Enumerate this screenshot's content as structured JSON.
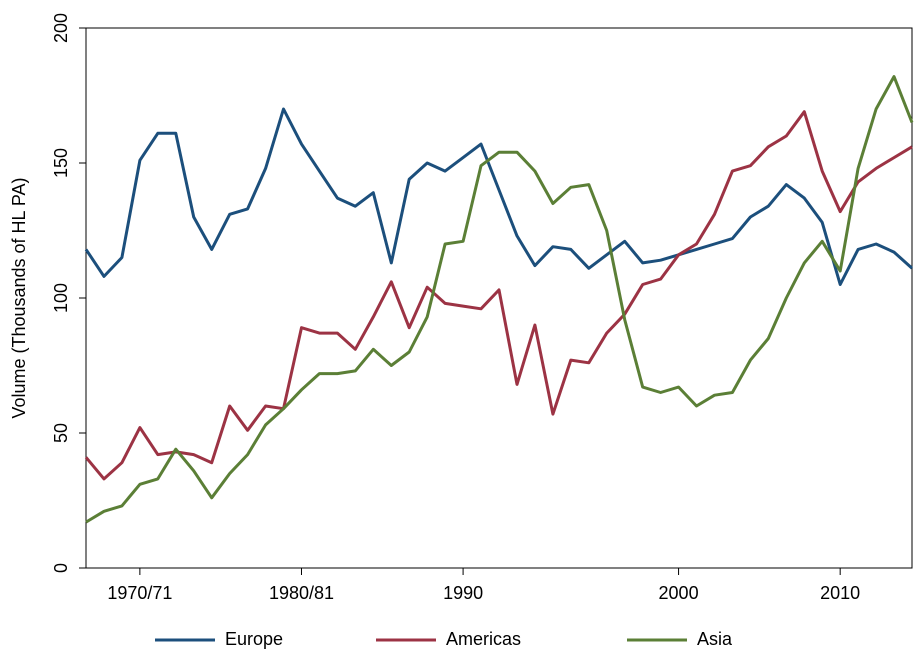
{
  "chart_data": {
    "type": "line",
    "ylabel": "Volume (Thousands of HL PA)",
    "categories": [
      null,
      null,
      null,
      "1970/71",
      null,
      null,
      null,
      null,
      null,
      null,
      null,
      null,
      "1980/81",
      null,
      null,
      null,
      null,
      null,
      null,
      null,
      null,
      "1990",
      null,
      null,
      null,
      null,
      null,
      null,
      null,
      null,
      null,
      null,
      null,
      "2000",
      null,
      null,
      null,
      null,
      null,
      null,
      null,
      null,
      "2010",
      null,
      null,
      null,
      null
    ],
    "ylim": [
      0,
      200
    ],
    "yticks": [
      0,
      50,
      100,
      150,
      200
    ],
    "grid": false,
    "legend": "bottom",
    "series": [
      {
        "name": "Europe",
        "color": "#1c4f7c",
        "values": [
          118,
          108,
          115,
          151,
          161,
          161,
          130,
          118,
          131,
          133,
          148,
          170,
          157,
          147,
          137,
          134,
          139,
          113,
          144,
          150,
          147,
          152,
          157,
          140,
          123,
          112,
          119,
          118,
          111,
          116,
          121,
          113,
          114,
          116,
          118,
          120,
          122,
          130,
          134,
          142,
          137,
          128,
          105,
          118,
          120,
          117,
          111
        ]
      },
      {
        "name": "Americas",
        "color": "#9c3344",
        "values": [
          41,
          33,
          39,
          52,
          42,
          43,
          42,
          39,
          60,
          51,
          60,
          59,
          89,
          87,
          87,
          81,
          93,
          106,
          89,
          104,
          98,
          97,
          96,
          103,
          68,
          90,
          57,
          77,
          76,
          87,
          94,
          105,
          107,
          116,
          120,
          131,
          147,
          149,
          156,
          160,
          169,
          147,
          132,
          143,
          148,
          152,
          156
        ]
      },
      {
        "name": "Asia",
        "color": "#5b7f36",
        "values": [
          17,
          21,
          23,
          31,
          33,
          44,
          36,
          26,
          35,
          42,
          53,
          59,
          66,
          72,
          72,
          73,
          81,
          75,
          80,
          93,
          120,
          121,
          149,
          154,
          154,
          147,
          135,
          141,
          142,
          125,
          92,
          67,
          65,
          67,
          60,
          64,
          65,
          77,
          85,
          100,
          113,
          121,
          110,
          148,
          170,
          182,
          165
        ]
      }
    ]
  }
}
